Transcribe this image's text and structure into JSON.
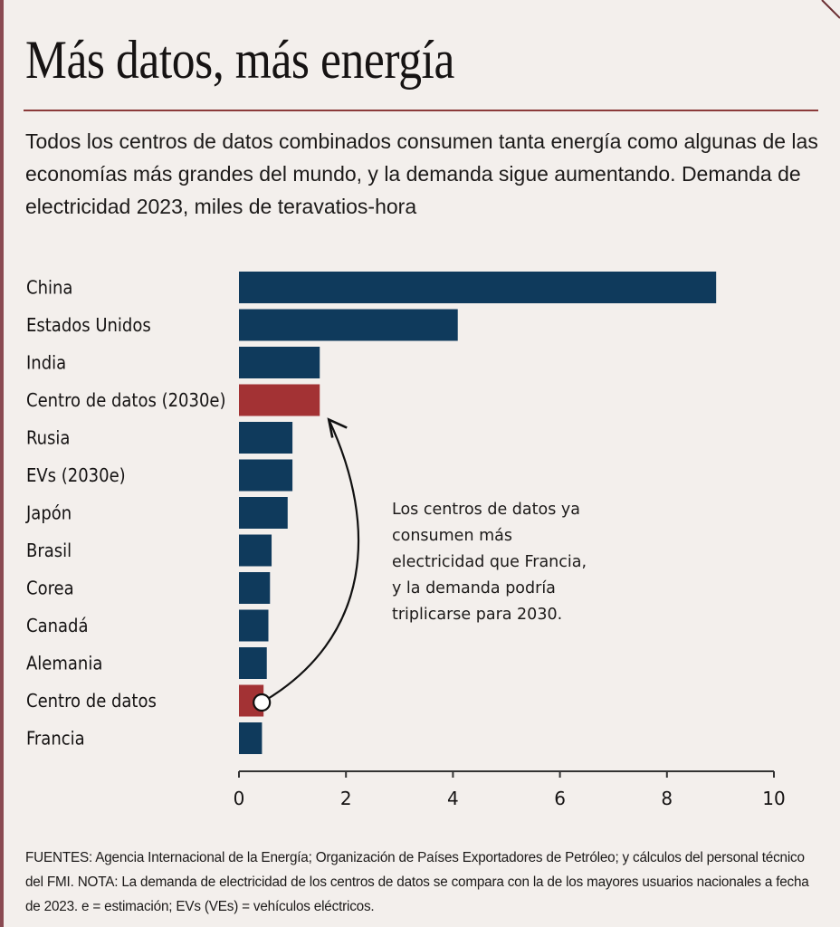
{
  "header": {
    "title": "Más datos, más energía",
    "subtitle": "Todos los centros de datos combinados consumen tanta energía como algunas de las economías más grandes del mundo, y la demanda sigue aumentando. Demanda de electricidad 2023, miles de teravatios-hora"
  },
  "annotation": {
    "text": "Los centros de datos ya consumen más electricidad que Francia, y la demanda podría triplicarse para 2030.",
    "arrow_from": "Centro de datos",
    "arrow_to": "Centro de datos (2030e)"
  },
  "footnote": "FUENTES: Agencia Internacional de la Energía; Organización de Países Exportadores de Petróleo; y cálculos del personal técnico del FMI. NOTA: La demanda de electricidad de los centros de datos se compara con la de los mayores usuarios nacionales a fecha de 2023. e = estimación; EVs (VEs) = vehículos eléctricos.",
  "colors": {
    "country": "#0f3a5c",
    "data_center": "#a33234",
    "background": "#f3efec",
    "rule": "#8b3a3a"
  },
  "chart_data": {
    "type": "bar",
    "orientation": "horizontal",
    "title": "Más datos, más energía",
    "xlabel": "",
    "ylabel": "",
    "unit": "miles de teravatios-hora",
    "xlim": [
      0,
      10
    ],
    "xticks": [
      0,
      2,
      4,
      6,
      8,
      10
    ],
    "grid": false,
    "categories": [
      "China",
      "Estados Unidos",
      "India",
      "Centro de datos (2030e)",
      "Rusia",
      "EVs (2030e)",
      "Japón",
      "Brasil",
      "Corea",
      "Canadá",
      "Alemania",
      "Centro de datos",
      "Francia"
    ],
    "values": [
      8.92,
      4.09,
      1.51,
      1.51,
      1.0,
      1.0,
      0.91,
      0.61,
      0.58,
      0.55,
      0.52,
      0.46,
      0.43
    ],
    "highlight": [
      false,
      false,
      false,
      true,
      false,
      false,
      false,
      false,
      false,
      false,
      false,
      true,
      false
    ]
  }
}
